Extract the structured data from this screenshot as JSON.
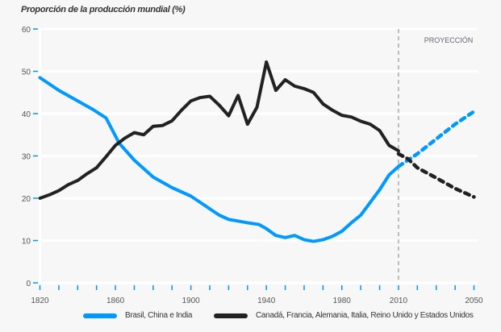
{
  "chart_data": {
    "type": "line",
    "title": "Proporción de la producción mundial (%)",
    "xlabel": "",
    "ylabel": "",
    "xlim": [
      1820,
      2050
    ],
    "ylim": [
      0,
      60
    ],
    "yticks": [
      0,
      10,
      20,
      30,
      40,
      50,
      60
    ],
    "xtick_labels": [
      1820,
      1860,
      1900,
      1940,
      1980,
      2010,
      2050
    ],
    "minor_xtick_step": 10,
    "projection_start": 2010,
    "annotation": "PROYECCIÓN",
    "grid": true,
    "legend_position": "bottom",
    "series": [
      {
        "name": "Brasil, China e India",
        "color": "#0099ff",
        "x": [
          1820,
          1830,
          1840,
          1848,
          1855,
          1862,
          1870,
          1880,
          1890,
          1900,
          1905,
          1910,
          1915,
          1920,
          1930,
          1936,
          1940,
          1945,
          1950,
          1955,
          1960,
          1965,
          1970,
          1975,
          1980,
          1985,
          1990,
          1995,
          2000,
          2005,
          2010
        ],
        "y": [
          48.5,
          45.5,
          43,
          41,
          39,
          33,
          29,
          25,
          22.5,
          20.5,
          19,
          17.5,
          16,
          15,
          14.2,
          13.8,
          12.8,
          11.2,
          10.7,
          11.2,
          10.2,
          9.8,
          10.2,
          11,
          12.2,
          14.2,
          16,
          19,
          22,
          25.5,
          27.5
        ],
        "projection": {
          "x": [
            2010,
            2015,
            2020,
            2030,
            2040,
            2050
          ],
          "y": [
            27.5,
            29,
            30.5,
            34,
            37.5,
            40.5
          ]
        }
      },
      {
        "name": "Canadá, Francia, Alemania, Italia, Reino Unido y Estados Unidos",
        "color": "#222222",
        "x": [
          1820,
          1825,
          1830,
          1835,
          1840,
          1845,
          1850,
          1855,
          1860,
          1865,
          1870,
          1875,
          1880,
          1885,
          1890,
          1895,
          1900,
          1905,
          1910,
          1915,
          1920,
          1925,
          1930,
          1935,
          1940,
          1945,
          1950,
          1955,
          1960,
          1965,
          1970,
          1975,
          1980,
          1985,
          1990,
          1995,
          2000,
          2005,
          2010
        ],
        "y": [
          20,
          20.8,
          21.8,
          23.2,
          24.2,
          25.8,
          27.2,
          29.8,
          32.5,
          34.2,
          35.5,
          35,
          37,
          37.2,
          38.3,
          40.8,
          43,
          43.8,
          44.1,
          42,
          39.5,
          44.3,
          37.5,
          41.5,
          52.2,
          45.5,
          48,
          46.5,
          45.9,
          45,
          42.3,
          40.8,
          39.6,
          39.2,
          38.2,
          37.5,
          36,
          32.5,
          31.2
        ],
        "projection": {
          "x": [
            2010,
            2015,
            2020,
            2030,
            2040,
            2050
          ],
          "y": [
            30.5,
            29.3,
            27.2,
            24.8,
            22.3,
            20.3
          ]
        }
      }
    ]
  }
}
